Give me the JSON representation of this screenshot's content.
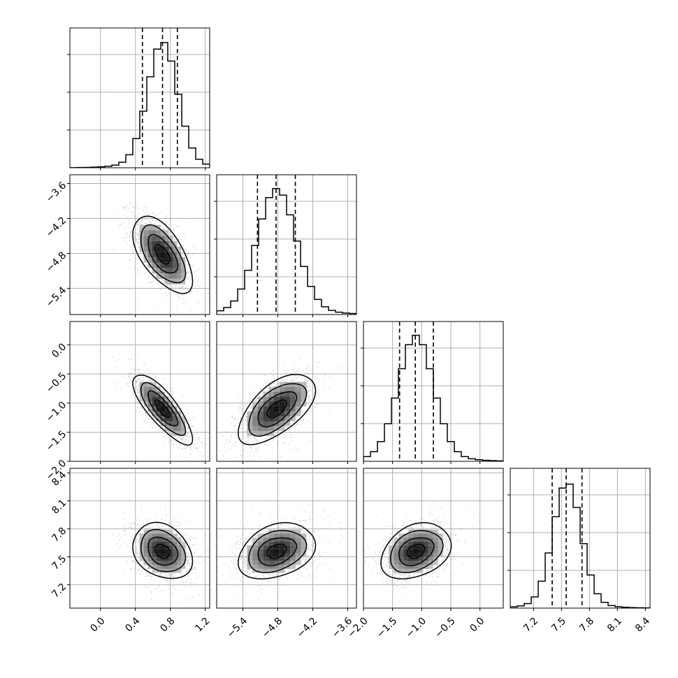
{
  "chart_data": {
    "type": "corner",
    "parameters": [
      {
        "range": [
          -0.35,
          1.25
        ],
        "ticks": [
          0.0,
          0.4,
          0.8,
          1.2
        ],
        "tick_labels": [
          "0.0",
          "0.4",
          "0.8",
          "1.2"
        ],
        "mean": 0.71,
        "std": 0.17,
        "quantiles": [
          0.48,
          0.71,
          0.88
        ]
      },
      {
        "range": [
          -5.85,
          -3.45
        ],
        "ticks": [
          -5.4,
          -4.8,
          -4.2,
          -3.6
        ],
        "tick_labels": [
          "−5.4",
          "−4.8",
          "−4.2",
          "−3.6"
        ],
        "mean": -4.82,
        "std": 0.33,
        "quantiles": [
          -5.15,
          -4.83,
          -4.5
        ]
      },
      {
        "range": [
          -2.0,
          0.4
        ],
        "ticks": [
          -2.0,
          -1.5,
          -1.0,
          -0.5,
          0.0
        ],
        "tick_labels": [
          "−2.0",
          "−1.5",
          "−1.0",
          "−0.5",
          "0.0"
        ],
        "mean": -1.1,
        "std": 0.3,
        "quantiles": [
          -1.38,
          -1.11,
          -0.8
        ]
      },
      {
        "range": [
          6.95,
          8.45
        ],
        "ticks": [
          7.2,
          7.5,
          7.8,
          8.1,
          8.4
        ],
        "tick_labels": [
          "7.2",
          "7.5",
          "7.8",
          "8.1",
          "8.4"
        ],
        "mean": 7.56,
        "std": 0.15,
        "quantiles": [
          7.4,
          7.55,
          7.72
        ]
      }
    ],
    "correlations": {
      "1-0": -0.6,
      "2-0": -0.8,
      "2-1": 0.6,
      "3-0": -0.25,
      "3-1": 0.3,
      "3-2": 0.3
    },
    "contour_levels_sigma": [
      0.5,
      1.0,
      1.5,
      2.0
    ],
    "grid": true,
    "n_samples": 5000
  }
}
